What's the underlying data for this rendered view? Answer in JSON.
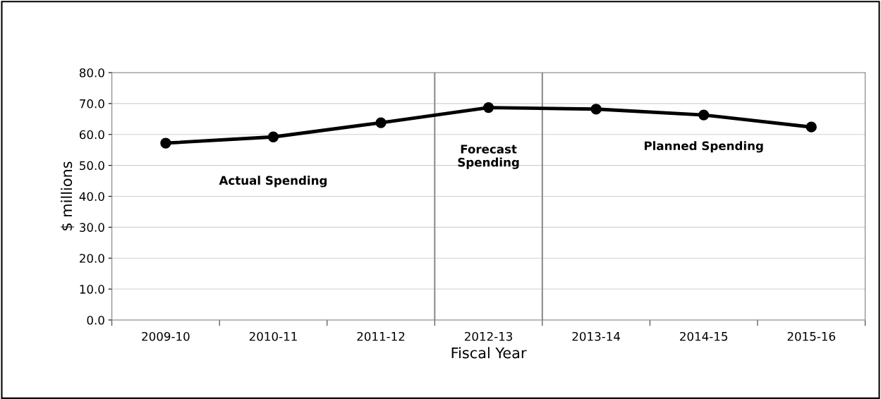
{
  "chart_data": {
    "type": "line",
    "xlabel": "Fiscal Year",
    "ylabel": "$ millions",
    "categories": [
      "2009-10",
      "2010-11",
      "2011-12",
      "2012-13",
      "2013-14",
      "2014-15",
      "2015-16"
    ],
    "series": [
      {
        "color": "#000000",
        "values": [
          57.2,
          59.2,
          63.8,
          68.7,
          68.2,
          66.3,
          62.4
        ]
      }
    ],
    "ylim": [
      0,
      80
    ],
    "yticks": [
      {
        "value": 0,
        "label": "0.0"
      },
      {
        "value": 10,
        "label": "10.0"
      },
      {
        "value": 20,
        "label": "20.0"
      },
      {
        "value": 30,
        "label": "30.0"
      },
      {
        "value": 40,
        "label": "40.0"
      },
      {
        "value": 50,
        "label": "50.0"
      },
      {
        "value": 60,
        "label": "60.0"
      },
      {
        "value": 70,
        "label": "70.0"
      },
      {
        "value": 80,
        "label": "80.0"
      }
    ],
    "grid": "y",
    "marker": "circle",
    "line_style": "solid",
    "annotations": [
      "Actual Spending",
      "Forecast\nSpending",
      "Planned Spending"
    ]
  }
}
